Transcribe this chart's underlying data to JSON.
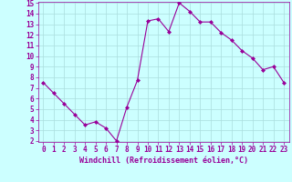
{
  "x": [
    0,
    1,
    2,
    3,
    4,
    5,
    6,
    7,
    8,
    9,
    10,
    11,
    12,
    13,
    14,
    15,
    16,
    17,
    18,
    19,
    20,
    21,
    22,
    23
  ],
  "y": [
    7.5,
    6.5,
    5.5,
    4.5,
    3.5,
    3.8,
    3.2,
    2.0,
    5.2,
    7.7,
    13.3,
    13.5,
    12.3,
    15.0,
    14.2,
    13.2,
    13.2,
    12.2,
    11.5,
    10.5,
    9.8,
    8.7,
    9.0,
    7.5
  ],
  "line_color": "#990099",
  "marker": "D",
  "marker_size": 2,
  "bg_color": "#ccffff",
  "grid_color": "#aadddd",
  "xlabel": "Windchill (Refroidissement éolien,°C)",
  "xlabel_color": "#990099",
  "tick_color": "#990099",
  "ylim": [
    2,
    15
  ],
  "xlim": [
    -0.5,
    23.5
  ],
  "yticks": [
    2,
    3,
    4,
    5,
    6,
    7,
    8,
    9,
    10,
    11,
    12,
    13,
    14,
    15
  ],
  "xticks": [
    0,
    1,
    2,
    3,
    4,
    5,
    6,
    7,
    8,
    9,
    10,
    11,
    12,
    13,
    14,
    15,
    16,
    17,
    18,
    19,
    20,
    21,
    22,
    23
  ],
  "tick_fontsize": 5.5,
  "xlabel_fontsize": 6.0
}
